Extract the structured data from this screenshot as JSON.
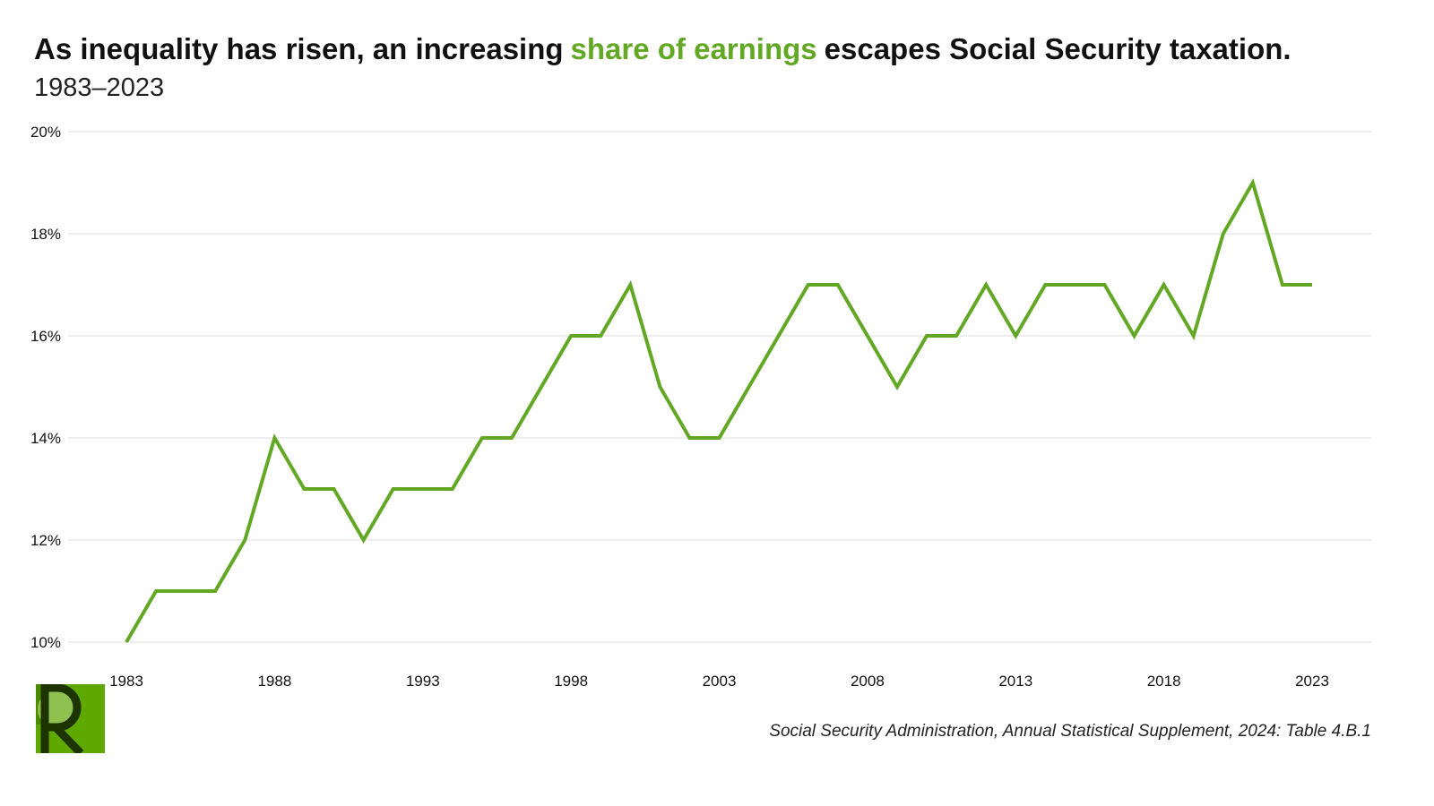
{
  "title": {
    "before": "As inequality has risen, an increasing",
    "highlight": "share of earnings",
    "after": "escapes Social Security taxation."
  },
  "subtitle": "1983–2023",
  "source": "Social Security Administration, Annual Statistical Supplement, 2024: Table 4.B.1",
  "colors": {
    "line": "#63a825",
    "highlight": "#63a825",
    "grid": "#dddddd",
    "logo": "#5fa800"
  },
  "chart_data": {
    "type": "line",
    "title": "",
    "xlabel": "",
    "ylabel": "",
    "x": [
      1983,
      1984,
      1985,
      1986,
      1987,
      1988,
      1989,
      1990,
      1991,
      1992,
      1993,
      1994,
      1995,
      1996,
      1997,
      1998,
      1999,
      2000,
      2001,
      2002,
      2003,
      2004,
      2005,
      2006,
      2007,
      2008,
      2009,
      2010,
      2011,
      2012,
      2013,
      2014,
      2015,
      2016,
      2017,
      2018,
      2019,
      2020,
      2021,
      2022,
      2023
    ],
    "series": [
      {
        "values": [
          10,
          11,
          11,
          11,
          12,
          14,
          13,
          13,
          12,
          13,
          13,
          13,
          14,
          14,
          15,
          16,
          16,
          17,
          15,
          14,
          14,
          15,
          16,
          17,
          17,
          16,
          15,
          16,
          16,
          17,
          16,
          17,
          17,
          17,
          16,
          17,
          16,
          18,
          19,
          17,
          17
        ]
      }
    ],
    "xlim": [
      1983,
      2023
    ],
    "ylim": [
      10,
      20
    ],
    "x_ticks": [
      "1983",
      "1988",
      "1993",
      "1998",
      "2003",
      "2008",
      "2013",
      "2018",
      "2023"
    ],
    "y_ticks": [
      "10%",
      "12%",
      "14%",
      "16%",
      "18%",
      "20%"
    ],
    "grid": "horizontal",
    "legend": "none"
  }
}
